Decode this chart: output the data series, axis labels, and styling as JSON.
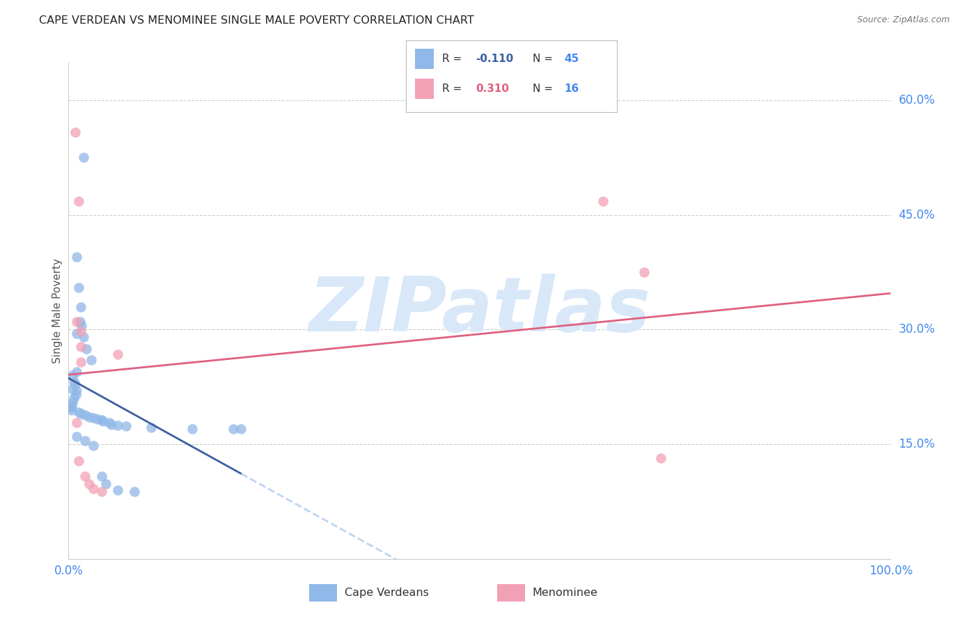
{
  "title": "CAPE VERDEAN VS MENOMINEE SINGLE MALE POVERTY CORRELATION CHART",
  "source": "Source: ZipAtlas.com",
  "ylabel": "Single Male Poverty",
  "ytick_labels": [
    "15.0%",
    "30.0%",
    "45.0%",
    "60.0%"
  ],
  "ytick_values": [
    0.15,
    0.3,
    0.45,
    0.6
  ],
  "xlim": [
    0.0,
    1.0
  ],
  "ylim": [
    0.0,
    0.65
  ],
  "watermark": "ZIPatlas",
  "blue_R": "-0.110",
  "blue_N": "45",
  "pink_R": "0.310",
  "pink_N": "16",
  "blue_scatter": [
    [
      0.018,
      0.525
    ],
    [
      0.01,
      0.395
    ],
    [
      0.012,
      0.355
    ],
    [
      0.015,
      0.33
    ],
    [
      0.014,
      0.31
    ],
    [
      0.016,
      0.305
    ],
    [
      0.01,
      0.295
    ],
    [
      0.018,
      0.29
    ],
    [
      0.022,
      0.275
    ],
    [
      0.028,
      0.26
    ],
    [
      0.01,
      0.245
    ],
    [
      0.005,
      0.24
    ],
    [
      0.006,
      0.232
    ],
    [
      0.008,
      0.228
    ],
    [
      0.005,
      0.222
    ],
    [
      0.01,
      0.22
    ],
    [
      0.009,
      0.215
    ],
    [
      0.006,
      0.21
    ],
    [
      0.005,
      0.205
    ],
    [
      0.004,
      0.2
    ],
    [
      0.003,
      0.198
    ],
    [
      0.004,
      0.195
    ],
    [
      0.012,
      0.192
    ],
    [
      0.015,
      0.19
    ],
    [
      0.02,
      0.188
    ],
    [
      0.025,
      0.186
    ],
    [
      0.03,
      0.185
    ],
    [
      0.035,
      0.183
    ],
    [
      0.04,
      0.182
    ],
    [
      0.042,
      0.18
    ],
    [
      0.05,
      0.178
    ],
    [
      0.052,
      0.176
    ],
    [
      0.06,
      0.175
    ],
    [
      0.07,
      0.174
    ],
    [
      0.1,
      0.172
    ],
    [
      0.15,
      0.17
    ],
    [
      0.2,
      0.17
    ],
    [
      0.21,
      0.17
    ],
    [
      0.01,
      0.16
    ],
    [
      0.02,
      0.155
    ],
    [
      0.03,
      0.148
    ],
    [
      0.04,
      0.108
    ],
    [
      0.045,
      0.098
    ],
    [
      0.06,
      0.09
    ],
    [
      0.08,
      0.088
    ]
  ],
  "pink_scatter": [
    [
      0.008,
      0.558
    ],
    [
      0.012,
      0.468
    ],
    [
      0.01,
      0.31
    ],
    [
      0.015,
      0.298
    ],
    [
      0.015,
      0.278
    ],
    [
      0.06,
      0.268
    ],
    [
      0.015,
      0.258
    ],
    [
      0.01,
      0.178
    ],
    [
      0.012,
      0.128
    ],
    [
      0.02,
      0.108
    ],
    [
      0.025,
      0.098
    ],
    [
      0.03,
      0.092
    ],
    [
      0.04,
      0.088
    ],
    [
      0.65,
      0.468
    ],
    [
      0.7,
      0.375
    ],
    [
      0.72,
      0.132
    ]
  ],
  "blue_line_color": "#3a5fa0",
  "pink_line_color": "#e06080",
  "blue_scatter_color": "#90b8e8",
  "pink_scatter_color": "#f2a0b5",
  "blue_dash_color": "#b8d0f0",
  "grid_color": "#cccccc",
  "tick_label_color": "#4488ee",
  "background_color": "#ffffff",
  "title_color": "#222222",
  "watermark_color": "#d8e8f8",
  "ylabel_color": "#555555",
  "source_color": "#777777"
}
